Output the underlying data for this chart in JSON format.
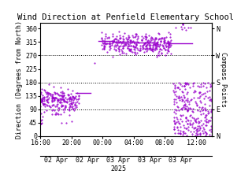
{
  "title": "Wind Direction at Penfield Elementary School",
  "ylabel_left": "Direction (Degrees from North)",
  "ylabel_right": "Compass Points",
  "ylim": [
    0,
    380
  ],
  "yticks": [
    0,
    45,
    90,
    135,
    180,
    225,
    270,
    315,
    360
  ],
  "ytick_labels": [
    "0",
    "45",
    "90",
    "135",
    "180",
    "225",
    "270",
    "315",
    "360"
  ],
  "compass_ticks": [
    0,
    90,
    180,
    270,
    360
  ],
  "compass_labels": [
    "N",
    "E",
    "S",
    "W",
    "N"
  ],
  "hlines": [
    90,
    180,
    270
  ],
  "point_color": "#9900cc",
  "bg_color": "#ffffff",
  "title_fontsize": 7.5,
  "tick_fontsize": 6,
  "label_fontsize": 6,
  "xtick_positions": [
    0,
    4,
    8,
    12,
    16,
    20
  ],
  "xtick_labels": [
    "16:00",
    "20:00",
    "00:00",
    "04:00",
    "08:00",
    "12:00"
  ],
  "xdate_positions": [
    2,
    6,
    10,
    14,
    18
  ],
  "xdate_labels": [
    "02 Apr",
    "02 Apr",
    "03 Apr\n2025",
    "03 Apr",
    "03 Apr"
  ]
}
